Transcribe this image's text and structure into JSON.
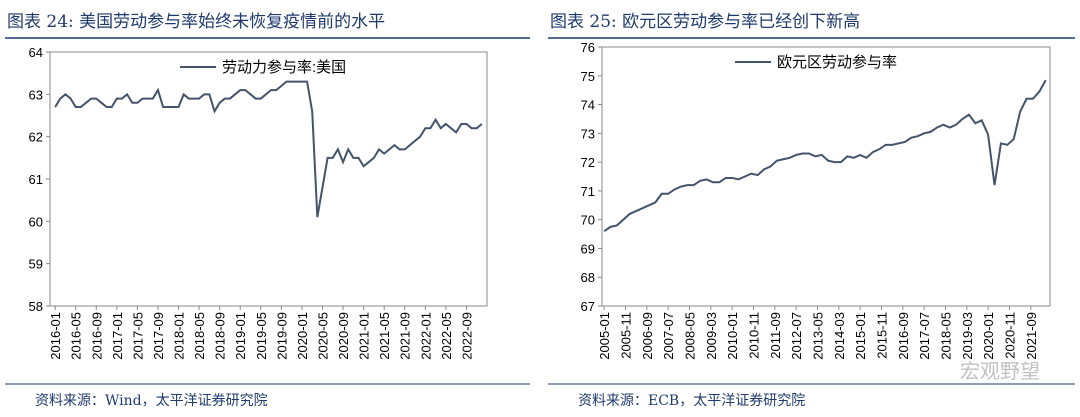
{
  "chart_data": [
    {
      "type": "line",
      "title": "图表 24: 美国劳动参与率始终未恢复疫情前的水平",
      "source": "资料来源：Wind，太平洋证券研究院",
      "x": [
        "2016-01",
        "2016-02",
        "2016-03",
        "2016-04",
        "2016-05",
        "2016-06",
        "2016-07",
        "2016-08",
        "2016-09",
        "2016-10",
        "2016-11",
        "2016-12",
        "2017-01",
        "2017-02",
        "2017-03",
        "2017-04",
        "2017-05",
        "2017-06",
        "2017-07",
        "2017-08",
        "2017-09",
        "2017-10",
        "2017-11",
        "2017-12",
        "2018-01",
        "2018-02",
        "2018-03",
        "2018-04",
        "2018-05",
        "2018-06",
        "2018-07",
        "2018-08",
        "2018-09",
        "2018-10",
        "2018-11",
        "2018-12",
        "2019-01",
        "2019-02",
        "2019-03",
        "2019-04",
        "2019-05",
        "2019-06",
        "2019-07",
        "2019-08",
        "2019-09",
        "2019-10",
        "2019-11",
        "2019-12",
        "2020-01",
        "2020-02",
        "2020-03",
        "2020-04",
        "2020-05",
        "2020-06",
        "2020-07",
        "2020-08",
        "2020-09",
        "2020-10",
        "2020-11",
        "2020-12",
        "2021-01",
        "2021-02",
        "2021-03",
        "2021-04",
        "2021-05",
        "2021-06",
        "2021-07",
        "2021-08",
        "2021-09",
        "2021-10",
        "2021-11",
        "2021-12",
        "2022-01",
        "2022-02",
        "2022-03",
        "2022-04",
        "2022-05",
        "2022-06",
        "2022-07",
        "2022-08",
        "2022-09",
        "2022-10",
        "2022-11",
        "2022-12"
      ],
      "series": [
        {
          "name": "劳动力参与率:美国",
          "color": "#44546a",
          "values": [
            62.7,
            62.9,
            63.0,
            62.9,
            62.7,
            62.7,
            62.8,
            62.9,
            62.9,
            62.8,
            62.7,
            62.7,
            62.9,
            62.9,
            63.0,
            62.8,
            62.8,
            62.9,
            62.9,
            62.9,
            63.1,
            62.7,
            62.7,
            62.7,
            62.7,
            63.0,
            62.9,
            62.9,
            62.9,
            63.0,
            63.0,
            62.6,
            62.8,
            62.9,
            62.9,
            63.0,
            63.1,
            63.1,
            63.0,
            62.9,
            62.9,
            63.0,
            63.1,
            63.1,
            63.2,
            63.3,
            63.3,
            63.3,
            63.3,
            63.3,
            62.6,
            60.1,
            60.8,
            61.5,
            61.5,
            61.7,
            61.4,
            61.7,
            61.5,
            61.5,
            61.3,
            61.4,
            61.5,
            61.7,
            61.6,
            61.7,
            61.8,
            61.7,
            61.7,
            61.8,
            61.9,
            62.0,
            62.2,
            62.2,
            62.4,
            62.2,
            62.3,
            62.2,
            62.1,
            62.3,
            62.3,
            62.2,
            62.2,
            62.3
          ]
        }
      ],
      "xlim": [
        "2015-12",
        "2023-01"
      ],
      "xticks": [
        "2016-01",
        "2016-05",
        "2016-09",
        "2017-01",
        "2017-05",
        "2017-09",
        "2018-01",
        "2018-05",
        "2018-09",
        "2019-01",
        "2019-05",
        "2019-09",
        "2020-01",
        "2020-05",
        "2020-09",
        "2021-01",
        "2021-05",
        "2021-09",
        "2022-01",
        "2022-05",
        "2022-09"
      ],
      "ylim": [
        58,
        64
      ],
      "yticks": [
        58,
        59,
        60,
        61,
        62,
        63,
        64
      ]
    },
    {
      "type": "line",
      "title": "图表 25: 欧元区劳动参与率已经创下新高",
      "source": "资料来源：ECB，太平洋证券研究院",
      "x": [
        "2005-01",
        "2005-04",
        "2005-07",
        "2005-10",
        "2006-01",
        "2006-04",
        "2006-07",
        "2006-10",
        "2007-01",
        "2007-04",
        "2007-07",
        "2007-10",
        "2008-01",
        "2008-04",
        "2008-07",
        "2008-10",
        "2009-01",
        "2009-04",
        "2009-07",
        "2009-10",
        "2010-01",
        "2010-04",
        "2010-07",
        "2010-10",
        "2011-01",
        "2011-04",
        "2011-07",
        "2011-10",
        "2012-01",
        "2012-04",
        "2012-07",
        "2012-10",
        "2013-01",
        "2013-04",
        "2013-07",
        "2013-10",
        "2014-01",
        "2014-04",
        "2014-07",
        "2014-10",
        "2015-01",
        "2015-04",
        "2015-07",
        "2015-10",
        "2016-01",
        "2016-04",
        "2016-07",
        "2016-10",
        "2017-01",
        "2017-04",
        "2017-07",
        "2017-10",
        "2018-01",
        "2018-04",
        "2018-07",
        "2018-10",
        "2019-01",
        "2019-04",
        "2019-07",
        "2019-10",
        "2020-01",
        "2020-04",
        "2020-07",
        "2020-10",
        "2021-01",
        "2021-04",
        "2021-07",
        "2021-10",
        "2022-01",
        "2022-04"
      ],
      "series": [
        {
          "name": "欧元区劳动参与率",
          "color": "#44546a",
          "values": [
            69.6,
            69.75,
            69.8,
            70.0,
            70.2,
            70.3,
            70.4,
            70.5,
            70.6,
            70.9,
            70.9,
            71.05,
            71.15,
            71.2,
            71.2,
            71.35,
            71.4,
            71.3,
            71.3,
            71.45,
            71.45,
            71.4,
            71.5,
            71.6,
            71.55,
            71.75,
            71.85,
            72.05,
            72.1,
            72.15,
            72.25,
            72.3,
            72.3,
            72.2,
            72.25,
            72.05,
            72.0,
            72.0,
            72.2,
            72.15,
            72.25,
            72.15,
            72.35,
            72.45,
            72.6,
            72.6,
            72.65,
            72.7,
            72.85,
            72.9,
            73.0,
            73.05,
            73.2,
            73.3,
            73.2,
            73.3,
            73.5,
            73.65,
            73.35,
            73.45,
            72.95,
            71.2,
            72.65,
            72.6,
            72.8,
            73.75,
            74.2,
            74.2,
            74.45,
            74.85
          ]
        }
      ],
      "xlim": [
        "2004-12",
        "2022-06"
      ],
      "xticks": [
        "2005-01",
        "2005-11",
        "2006-09",
        "2007-07",
        "2008-05",
        "2009-03",
        "2010-01",
        "2010-11",
        "2011-09",
        "2012-07",
        "2013-05",
        "2014-03",
        "2015-01",
        "2015-11",
        "2016-09",
        "2017-07",
        "2018-05",
        "2019-03",
        "2020-01",
        "2020-11",
        "2021-09"
      ],
      "ylim": [
        67,
        76
      ],
      "yticks": [
        67,
        68,
        69,
        70,
        71,
        72,
        73,
        74,
        75,
        76
      ]
    }
  ],
  "watermark": "宏观野望"
}
